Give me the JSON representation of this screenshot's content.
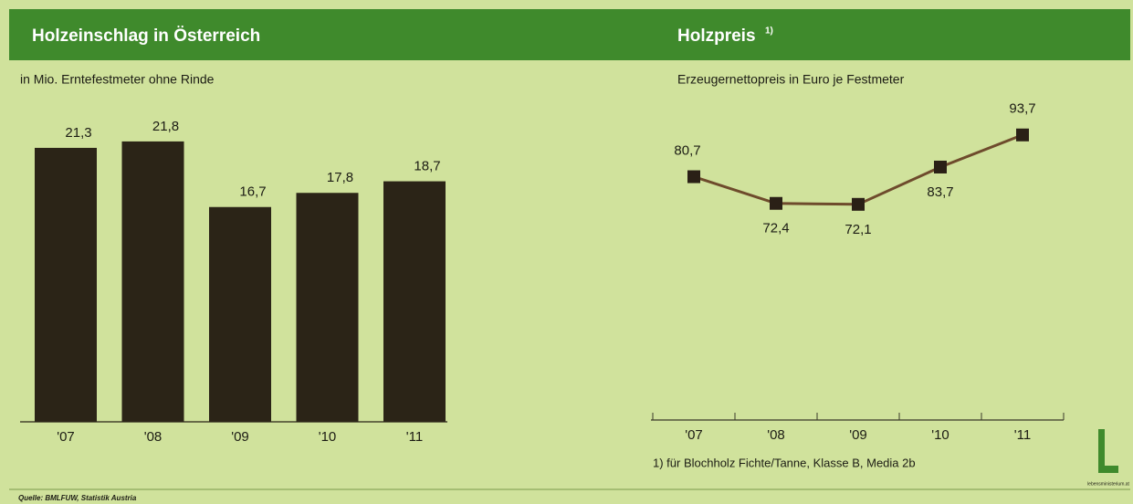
{
  "chart_data": [
    {
      "type": "bar",
      "title": "Holzeinschlag in Österreich",
      "subtitle": "in Mio. Erntefestmeter ohne Rinde",
      "categories": [
        "'07",
        "'08",
        "'09",
        "'10",
        "'11"
      ],
      "values": [
        21.3,
        21.8,
        16.7,
        17.8,
        18.7
      ],
      "value_labels": [
        "21,3",
        "21,8",
        "16,7",
        "17,8",
        "18,7"
      ],
      "color": "#2b2417",
      "ylim": [
        0,
        23
      ]
    },
    {
      "type": "line",
      "title": "Holzpreis",
      "title_note": "1)",
      "subtitle": "Erzeugernettopreis in Euro je Festmeter",
      "categories": [
        "'07",
        "'08",
        "'09",
        "'10",
        "'11"
      ],
      "values": [
        80.7,
        72.4,
        72.1,
        83.7,
        93.7
      ],
      "value_labels": [
        "80,7",
        "72,4",
        "72,1",
        "83,7",
        "93,7"
      ],
      "color": "#6e4b2c",
      "marker_color": "#2a2016",
      "ylim": [
        5,
        100
      ],
      "footnote": "1) für Blochholz Fichte/Tanne, Klasse B, Media 2b"
    }
  ],
  "source": "Quelle: BMLFUW, Statistik Austria",
  "logo": "lebensministerium.at"
}
